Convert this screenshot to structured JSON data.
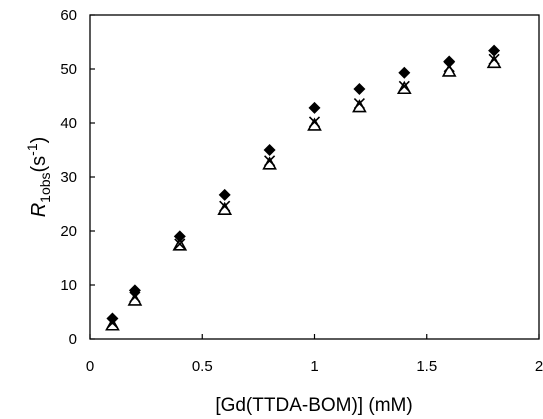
{
  "chart_data": {
    "type": "scatter",
    "xlabel": "[Gd(TTDA-BOM)] (mM)",
    "ylabel": {
      "symbol": "R",
      "subscript": "1obs",
      "unit_open": "(s",
      "unit_exponent": "-1",
      "unit_close": ")"
    },
    "xlim": [
      0,
      2
    ],
    "ylim": [
      0,
      60
    ],
    "x_ticks": [
      {
        "value": 0,
        "label": "0"
      },
      {
        "value": 0.5,
        "label": "0.5"
      },
      {
        "value": 1,
        "label": "1"
      },
      {
        "value": 1.5,
        "label": "1.5"
      },
      {
        "value": 2,
        "label": "2"
      }
    ],
    "y_ticks": [
      {
        "value": 0,
        "label": "0"
      },
      {
        "value": 10,
        "label": "10"
      },
      {
        "value": 20,
        "label": "20"
      },
      {
        "value": 30,
        "label": "30"
      },
      {
        "value": 40,
        "label": "40"
      },
      {
        "value": 50,
        "label": "50"
      },
      {
        "value": 60,
        "label": "60"
      }
    ],
    "grid": false,
    "legend": "none",
    "series": [
      {
        "marker": "diamond",
        "color": "#000000",
        "x": [
          0.1,
          0.2,
          0.4,
          0.6,
          0.8,
          1.0,
          1.2,
          1.4,
          1.6,
          1.8
        ],
        "y": [
          3.8,
          9.0,
          19.0,
          26.7,
          35.0,
          42.8,
          46.3,
          49.3,
          51.4,
          53.4
        ]
      },
      {
        "marker": "cross",
        "color": "#000000",
        "x": [
          0.1,
          0.2,
          0.4,
          0.6,
          0.8,
          1.0,
          1.2,
          1.4,
          1.6,
          1.8
        ],
        "y": [
          3.0,
          7.8,
          17.6,
          24.6,
          33.0,
          40.2,
          43.6,
          46.8,
          50.4,
          51.8
        ]
      },
      {
        "marker": "triangle-open",
        "color": "#000000",
        "x": [
          0.1,
          0.2,
          0.4,
          0.6,
          0.8,
          1.0,
          1.2,
          1.4,
          1.6,
          1.8
        ],
        "y": [
          2.6,
          7.2,
          17.4,
          24.0,
          32.4,
          39.6,
          43.0,
          46.4,
          49.6,
          51.2
        ]
      }
    ]
  }
}
